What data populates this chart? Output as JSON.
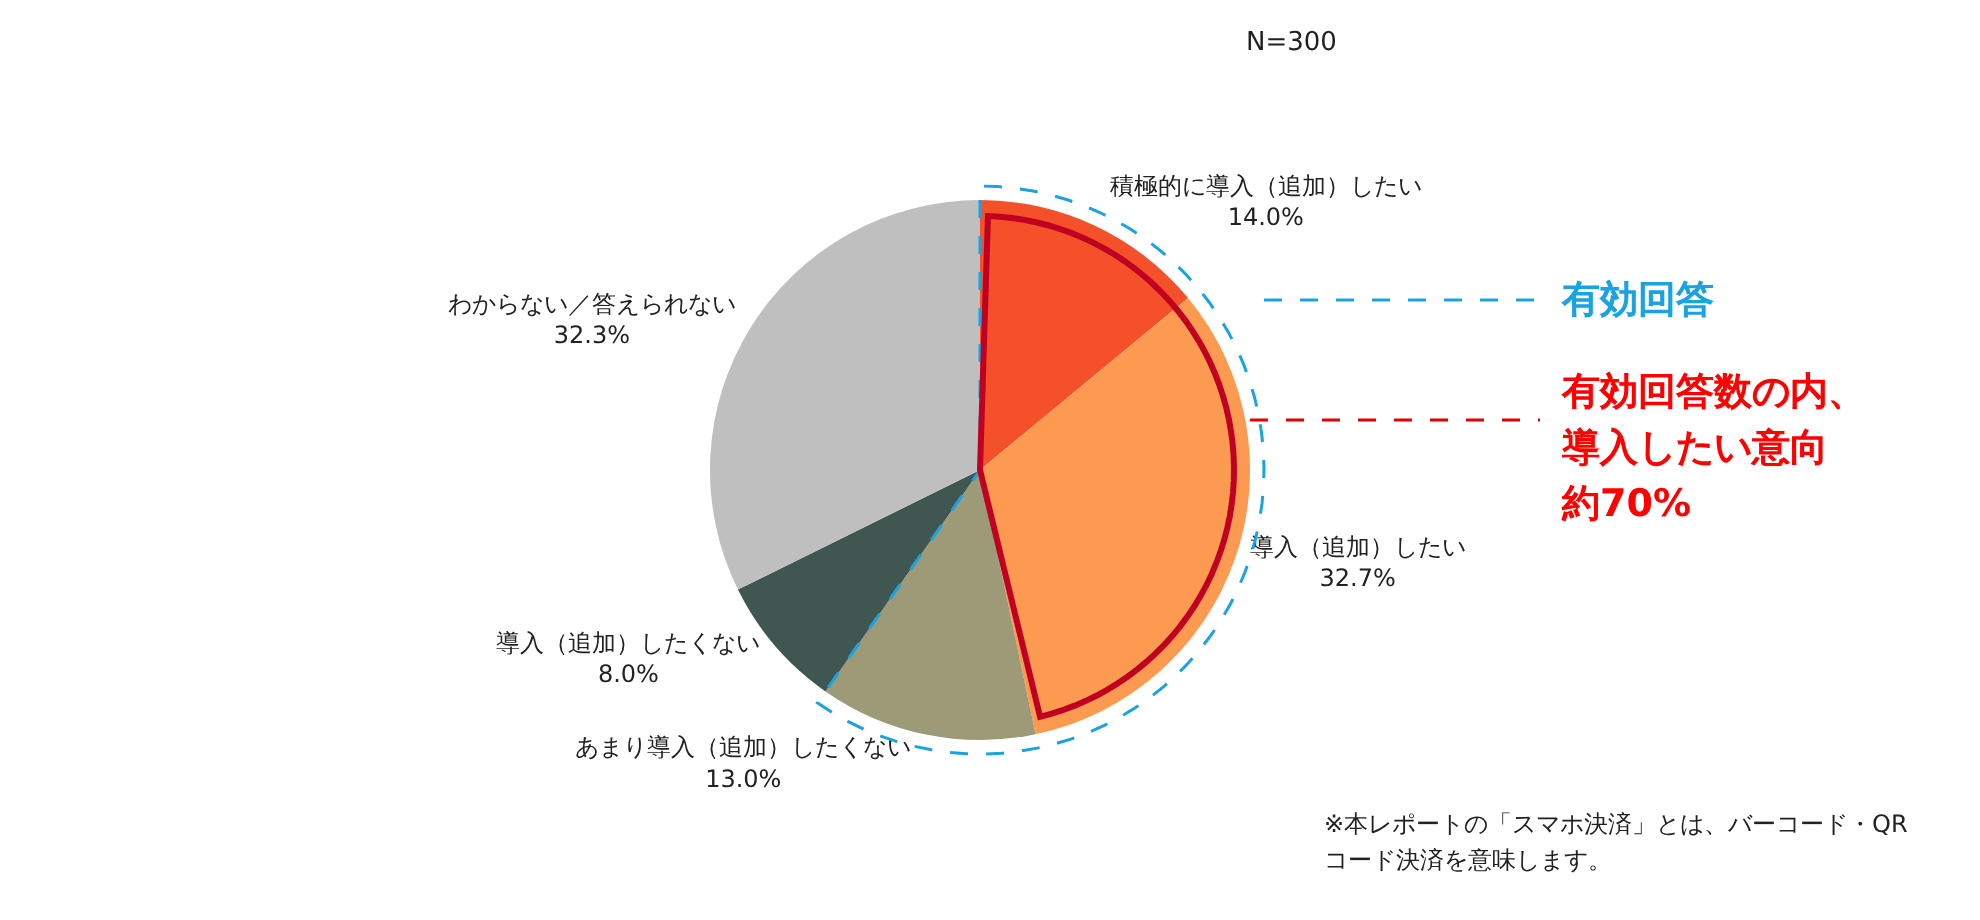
{
  "chart_data": {
    "type": "pie",
    "categories": [
      "積極的に導入（追加）したい",
      "導入（追加）したい",
      "あまり導入（追加）したくない",
      "導入（追加）したくない",
      "わからない／答えられない"
    ],
    "values": [
      14.0,
      32.7,
      13.0,
      8.0,
      32.3
    ],
    "value_labels": [
      "14.0%",
      "32.7%",
      "13.0%",
      "8.0%",
      "32.3%"
    ],
    "colors": [
      "#f4502a",
      "#fb9a50",
      "#9d9a78",
      "#3f5750",
      "#bfbfbf"
    ],
    "legend": false,
    "annotations": [
      "N=300",
      "有効回答",
      "有効回答数の内、",
      "導入したい意向",
      "約70%",
      "※本レポートの「スマホ決済」とは、バーコード・QR",
      "コード決済を意味します。"
    ]
  }
}
